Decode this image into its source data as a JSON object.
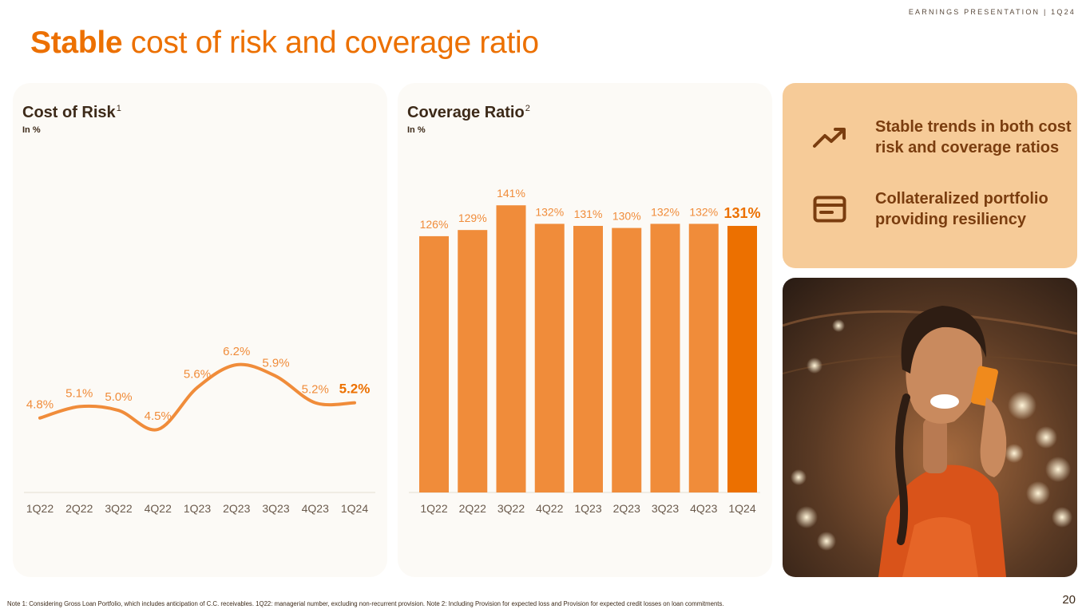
{
  "header_tag": "EARNINGS PRESENTATION | 1Q24",
  "title": {
    "strong": "Stable",
    "rest": " cost of risk and coverage ratio"
  },
  "colors": {
    "accent": "#ec7000",
    "series": "#f08c3a",
    "highlight": "#ec7000",
    "panel_bg": "#fcfaf6",
    "card_bg": "#f6cb98",
    "card_text": "#7a3d0f"
  },
  "chart_data": [
    {
      "type": "line",
      "title": "Cost of Risk",
      "title_sup": "1",
      "subtitle": "In %",
      "categories": [
        "1Q22",
        "2Q22",
        "3Q22",
        "4Q22",
        "1Q23",
        "2Q23",
        "3Q23",
        "4Q23",
        "1Q24"
      ],
      "values": [
        4.8,
        5.1,
        5.0,
        4.5,
        5.6,
        6.2,
        5.9,
        5.2,
        5.2
      ],
      "data_labels": [
        "4.8%",
        "5.1%",
        "5.0%",
        "4.5%",
        "5.6%",
        "6.2%",
        "5.9%",
        "5.2%",
        "5.2%"
      ],
      "highlight_last": true,
      "grid": false
    },
    {
      "type": "bar",
      "title": "Coverage Ratio",
      "title_sup": "2",
      "subtitle": "In %",
      "categories": [
        "1Q22",
        "2Q22",
        "3Q22",
        "4Q22",
        "1Q23",
        "2Q23",
        "3Q23",
        "4Q23",
        "1Q24"
      ],
      "values": [
        126,
        129,
        141,
        132,
        131,
        130,
        132,
        132,
        131
      ],
      "data_labels": [
        "126%",
        "129%",
        "141%",
        "132%",
        "131%",
        "130%",
        "132%",
        "132%",
        "131%"
      ],
      "highlight_last": true,
      "grid": false
    }
  ],
  "highlights": [
    {
      "icon": "trending-up-icon",
      "text": "Stable trends in both cost risk and coverage ratios"
    },
    {
      "icon": "credit-card-icon",
      "text": "Collateralized portfolio providing resiliency"
    }
  ],
  "footnote": "Note 1: Considering Gross Loan Portfolio, which includes anticipation of C.C. receivables. 1Q22: managerial number, excluding non-recurrent provision. Note 2:  Including Provision for expected loss and Provision for expected credit losses on loan commitments.",
  "page_number": "20"
}
